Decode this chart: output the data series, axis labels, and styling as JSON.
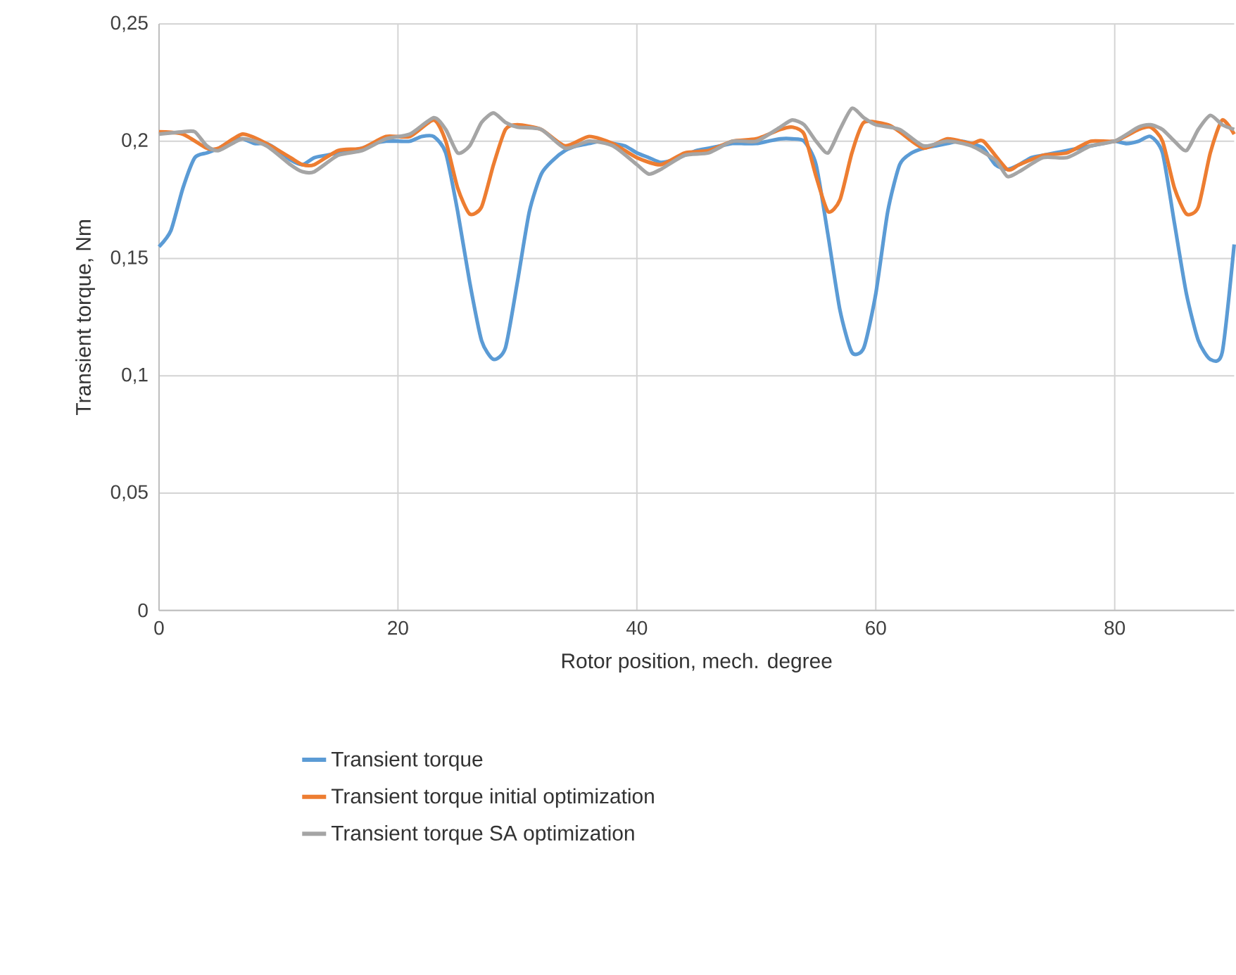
{
  "chart_data": {
    "type": "line",
    "xlabel": "Rotor position, mech. degree",
    "ylabel": "Transient torque, Nm",
    "xlim": [
      0,
      90
    ],
    "xticks": [
      0,
      20,
      40,
      60,
      80
    ],
    "ylim": [
      0,
      0.25
    ],
    "yticks": [
      0,
      {
        "value": 0.05,
        "label": "0,05"
      },
      {
        "value": 0.1,
        "label": "0,1"
      },
      {
        "value": 0.15,
        "label": "0,15"
      },
      {
        "value": 0.2,
        "label": "0,2"
      },
      {
        "value": 0.25,
        "label": "0,25"
      }
    ],
    "grid": true,
    "legend": "bottom",
    "series": [
      {
        "name": "Transient torque",
        "color": "#5b9bd5",
        "x": [
          0,
          1,
          2,
          3,
          4,
          5,
          6,
          7,
          8,
          9,
          10,
          11,
          12,
          13,
          14,
          15,
          16,
          17,
          18,
          19,
          20,
          21,
          22,
          23,
          24,
          25,
          26,
          27,
          28,
          29,
          30,
          31,
          32,
          33,
          34,
          35,
          36,
          37,
          38,
          39,
          40,
          41,
          42,
          43,
          44,
          45,
          46,
          47,
          48,
          49,
          50,
          51,
          52,
          53,
          54,
          55,
          56,
          57,
          58,
          59,
          60,
          61,
          62,
          63,
          64,
          65,
          66,
          67,
          68,
          69,
          70,
          71,
          72,
          73,
          74,
          75,
          76,
          77,
          78,
          79,
          80,
          81,
          82,
          83,
          84,
          85,
          86,
          87,
          88,
          89,
          90
        ],
        "values": [
          0.155,
          0.162,
          0.18,
          0.193,
          0.195,
          0.197,
          0.2,
          0.201,
          0.199,
          0.199,
          0.196,
          0.192,
          0.19,
          0.193,
          0.194,
          0.195,
          0.196,
          0.197,
          0.199,
          0.2,
          0.2,
          0.2,
          0.202,
          0.202,
          0.195,
          0.17,
          0.14,
          0.115,
          0.107,
          0.112,
          0.14,
          0.17,
          0.186,
          0.192,
          0.196,
          0.198,
          0.199,
          0.2,
          0.199,
          0.198,
          0.195,
          0.193,
          0.191,
          0.192,
          0.194,
          0.196,
          0.197,
          0.198,
          0.199,
          0.199,
          0.199,
          0.2,
          0.201,
          0.201,
          0.2,
          0.19,
          0.16,
          0.128,
          0.11,
          0.112,
          0.135,
          0.17,
          0.19,
          0.195,
          0.197,
          0.198,
          0.199,
          0.2,
          0.199,
          0.197,
          0.19,
          0.188,
          0.19,
          0.193,
          0.194,
          0.195,
          0.196,
          0.197,
          0.198,
          0.199,
          0.2,
          0.199,
          0.2,
          0.202,
          0.195,
          0.165,
          0.135,
          0.115,
          0.107,
          0.11,
          0.156
        ]
      },
      {
        "name": "Transient torque initial optimization",
        "color": "#ed7d31",
        "x": [
          0,
          2,
          4,
          5,
          7,
          9,
          11,
          12,
          13,
          15,
          17,
          19,
          21,
          23,
          24,
          25,
          26,
          27,
          28,
          29,
          30,
          32,
          34,
          36,
          38,
          40,
          42,
          44,
          46,
          48,
          50,
          52,
          53,
          54,
          55,
          56,
          57,
          58,
          59,
          61,
          62,
          64,
          66,
          68,
          69,
          71,
          72,
          74,
          76,
          78,
          80,
          82,
          83,
          84,
          85,
          86,
          87,
          88,
          89,
          90
        ],
        "values": [
          0.204,
          0.203,
          0.197,
          0.197,
          0.203,
          0.199,
          0.193,
          0.19,
          0.19,
          0.196,
          0.197,
          0.202,
          0.202,
          0.209,
          0.2,
          0.18,
          0.169,
          0.172,
          0.19,
          0.205,
          0.207,
          0.205,
          0.198,
          0.202,
          0.199,
          0.193,
          0.19,
          0.195,
          0.196,
          0.2,
          0.201,
          0.205,
          0.206,
          0.203,
          0.185,
          0.17,
          0.175,
          0.195,
          0.208,
          0.207,
          0.204,
          0.197,
          0.201,
          0.199,
          0.2,
          0.188,
          0.19,
          0.194,
          0.195,
          0.2,
          0.2,
          0.205,
          0.206,
          0.2,
          0.18,
          0.169,
          0.172,
          0.195,
          0.209,
          0.203
        ]
      },
      {
        "name": "Transient torque SA optimization",
        "color": "#a5a5a5",
        "x": [
          0,
          2,
          3,
          4,
          5,
          7,
          9,
          11,
          12,
          13,
          15,
          17,
          19,
          21,
          23,
          24,
          25,
          26,
          27,
          28,
          29,
          30,
          32,
          34,
          36,
          38,
          40,
          41,
          42,
          44,
          46,
          48,
          50,
          52,
          53,
          54,
          55,
          56,
          57,
          58,
          59,
          60,
          62,
          64,
          66,
          68,
          70,
          71,
          72,
          74,
          76,
          78,
          80,
          82,
          83,
          84,
          85,
          86,
          87,
          88,
          89,
          90
        ],
        "values": [
          0.203,
          0.204,
          0.204,
          0.198,
          0.196,
          0.201,
          0.198,
          0.19,
          0.187,
          0.187,
          0.194,
          0.196,
          0.201,
          0.203,
          0.21,
          0.205,
          0.195,
          0.198,
          0.208,
          0.212,
          0.208,
          0.206,
          0.205,
          0.197,
          0.2,
          0.198,
          0.19,
          0.186,
          0.188,
          0.194,
          0.195,
          0.2,
          0.2,
          0.206,
          0.209,
          0.207,
          0.2,
          0.195,
          0.205,
          0.214,
          0.21,
          0.207,
          0.205,
          0.198,
          0.2,
          0.198,
          0.192,
          0.185,
          0.187,
          0.193,
          0.193,
          0.198,
          0.2,
          0.206,
          0.207,
          0.205,
          0.2,
          0.196,
          0.205,
          0.211,
          0.207,
          0.205
        ]
      }
    ]
  }
}
